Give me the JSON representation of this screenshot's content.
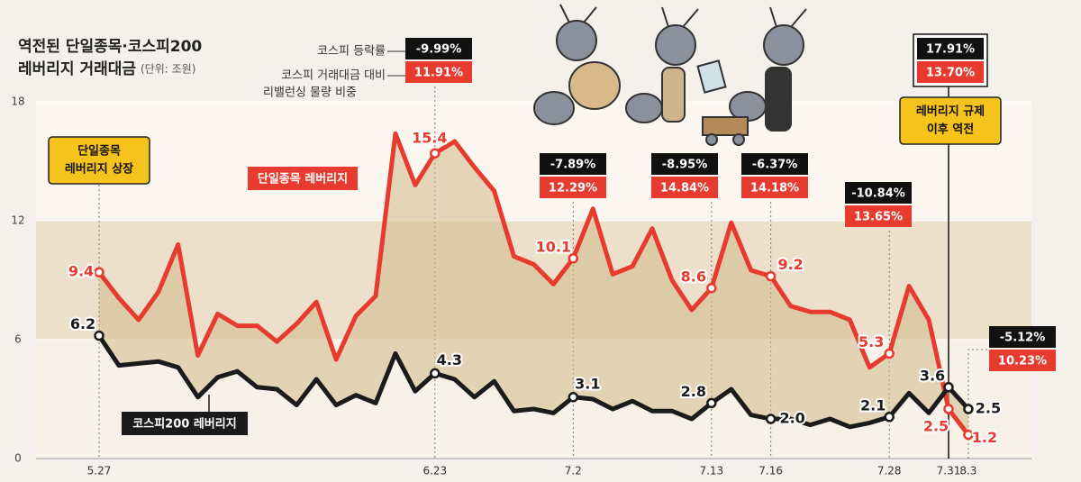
{
  "title": [
    "역전된 단일종목·코스피200",
    "레버리지 거래대금"
  ],
  "unit": "(단위: 조원)",
  "legend": {
    "change": "코스피 등락률",
    "ratio": [
      "코스피 거래대금 대비",
      "리밸런싱 물량 비중"
    ]
  },
  "chart_data": {
    "type": "line",
    "categories": [
      "5.27",
      null,
      null,
      null,
      null,
      null,
      null,
      null,
      null,
      null,
      null,
      null,
      null,
      null,
      null,
      null,
      null,
      "6.23",
      null,
      null,
      null,
      null,
      null,
      null,
      "7.2",
      null,
      null,
      null,
      null,
      null,
      null,
      "7.13",
      null,
      null,
      "7.16",
      null,
      null,
      null,
      null,
      null,
      "7.28",
      null,
      null,
      "7.31",
      "8.3"
    ],
    "series": [
      {
        "name": "단일종목 레버리지",
        "color": "#e63b2e",
        "values": [
          9.4,
          8.1,
          7.0,
          8.4,
          10.8,
          5.2,
          7.3,
          6.7,
          6.7,
          5.9,
          6.8,
          7.9,
          5.0,
          7.2,
          8.2,
          16.4,
          13.8,
          15.4,
          16.0,
          14.7,
          13.5,
          10.2,
          9.8,
          8.8,
          10.1,
          12.6,
          9.3,
          9.7,
          11.6,
          9.0,
          7.5,
          8.6,
          11.9,
          9.5,
          9.2,
          7.7,
          7.4,
          7.4,
          7.0,
          4.6,
          5.3,
          8.7,
          7.0,
          2.5,
          1.2
        ],
        "value_labels": [
          "9.4",
          null,
          null,
          null,
          null,
          null,
          null,
          null,
          null,
          null,
          null,
          null,
          null,
          null,
          null,
          null,
          null,
          "15.4",
          null,
          null,
          null,
          null,
          null,
          null,
          "10.1",
          null,
          null,
          null,
          null,
          null,
          null,
          "8.6",
          null,
          null,
          "9.2",
          null,
          null,
          null,
          null,
          null,
          "5.3",
          null,
          null,
          "2.5",
          "1.2"
        ]
      },
      {
        "name": "코스피200 레버리지",
        "color": "#1b1b1b",
        "values": [
          6.2,
          4.7,
          4.8,
          4.9,
          4.6,
          3.1,
          4.1,
          4.4,
          3.6,
          3.5,
          2.7,
          4.0,
          2.7,
          3.2,
          2.8,
          5.3,
          3.4,
          4.3,
          4.0,
          3.1,
          3.9,
          2.4,
          2.5,
          2.3,
          3.1,
          3.0,
          2.5,
          2.9,
          2.4,
          2.4,
          2.0,
          2.8,
          3.5,
          2.2,
          2.0,
          2.0,
          1.7,
          2.0,
          1.6,
          1.8,
          2.1,
          3.3,
          2.3,
          3.6,
          2.5
        ],
        "value_labels": [
          "6.2",
          null,
          null,
          null,
          null,
          null,
          null,
          null,
          null,
          null,
          null,
          null,
          null,
          null,
          null,
          null,
          null,
          "4.3",
          null,
          null,
          null,
          null,
          null,
          null,
          "3.1",
          null,
          null,
          null,
          null,
          null,
          null,
          "2.8",
          null,
          null,
          "2.0",
          null,
          null,
          null,
          null,
          null,
          "2.1",
          null,
          null,
          "3.6",
          "2.5"
        ]
      }
    ],
    "ylim": [
      0,
      18
    ],
    "yticks": [
      0,
      6,
      12,
      18
    ],
    "area_between": true,
    "annotations": [
      {
        "change": "-9.99%",
        "ratio": "11.91%"
      },
      {
        "change": "-7.89%",
        "ratio": "12.29%"
      },
      {
        "change": "-8.95%",
        "ratio": "14.84%"
      },
      {
        "change": "-6.37%",
        "ratio": "14.18%"
      },
      {
        "change": "-10.84%",
        "ratio": "13.65%"
      },
      {
        "change": "17.91%",
        "ratio": "13.70%"
      },
      {
        "change": "-5.12%",
        "ratio": "10.23%"
      }
    ],
    "notes": [
      [
        "단일종목",
        "레버리지 상장"
      ],
      [
        "레버리지 규제",
        "이후 역전"
      ]
    ]
  }
}
